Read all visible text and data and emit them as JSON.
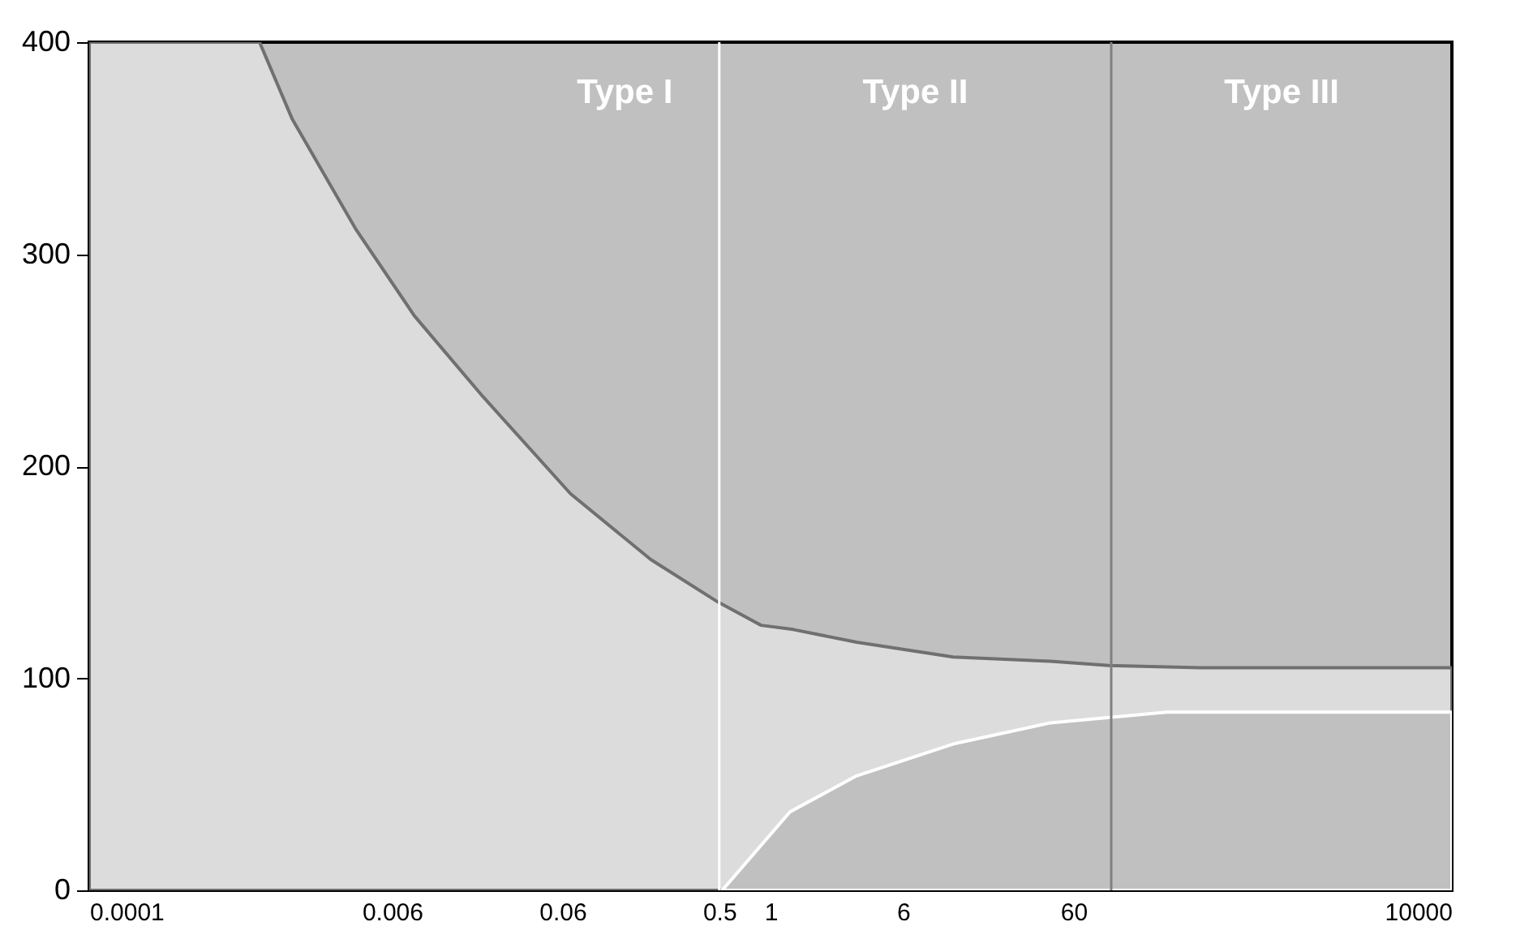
{
  "chart_data": {
    "type": "area",
    "series": [
      {
        "type": "area",
        "color": "#dcdcdc",
        "x": [
          0.0001,
          0.001,
          0.00155,
          0.00366,
          0.0081,
          0.0204,
          0.067,
          0.198,
          0.49,
          0.88,
          1.36,
          3.2,
          11.8,
          44,
          97,
          335,
          10000
        ],
        "values": [
          400,
          400,
          364,
          312,
          271,
          233,
          187,
          156,
          136,
          125,
          123,
          117,
          110,
          108,
          106,
          105,
          105
        ]
      },
      {
        "type": "area",
        "color": "#c0c0c0",
        "x": [
          0.52,
          1.3,
          3.2,
          11.8,
          44,
          114,
          212,
          10000
        ],
        "values": [
          0,
          37,
          54,
          69,
          79,
          82,
          84,
          84
        ]
      }
    ],
    "xlim": [
      0.0001,
      10000
    ],
    "xticks": [
      0.0001,
      0.006,
      0.06,
      0.5,
      1,
      6,
      60,
      10000
    ],
    "ylim": [
      0,
      400
    ],
    "yticks": [
      0,
      100,
      200,
      300,
      400
    ],
    "log": "x",
    "grid": false,
    "ref_lines": [
      {
        "axis": "x",
        "value": 0.5,
        "color": "#ffffff"
      },
      {
        "axis": "x",
        "value": 100,
        "color": "#808080"
      }
    ],
    "annotations": [
      "Type I",
      "Type II",
      "Type III"
    ]
  }
}
